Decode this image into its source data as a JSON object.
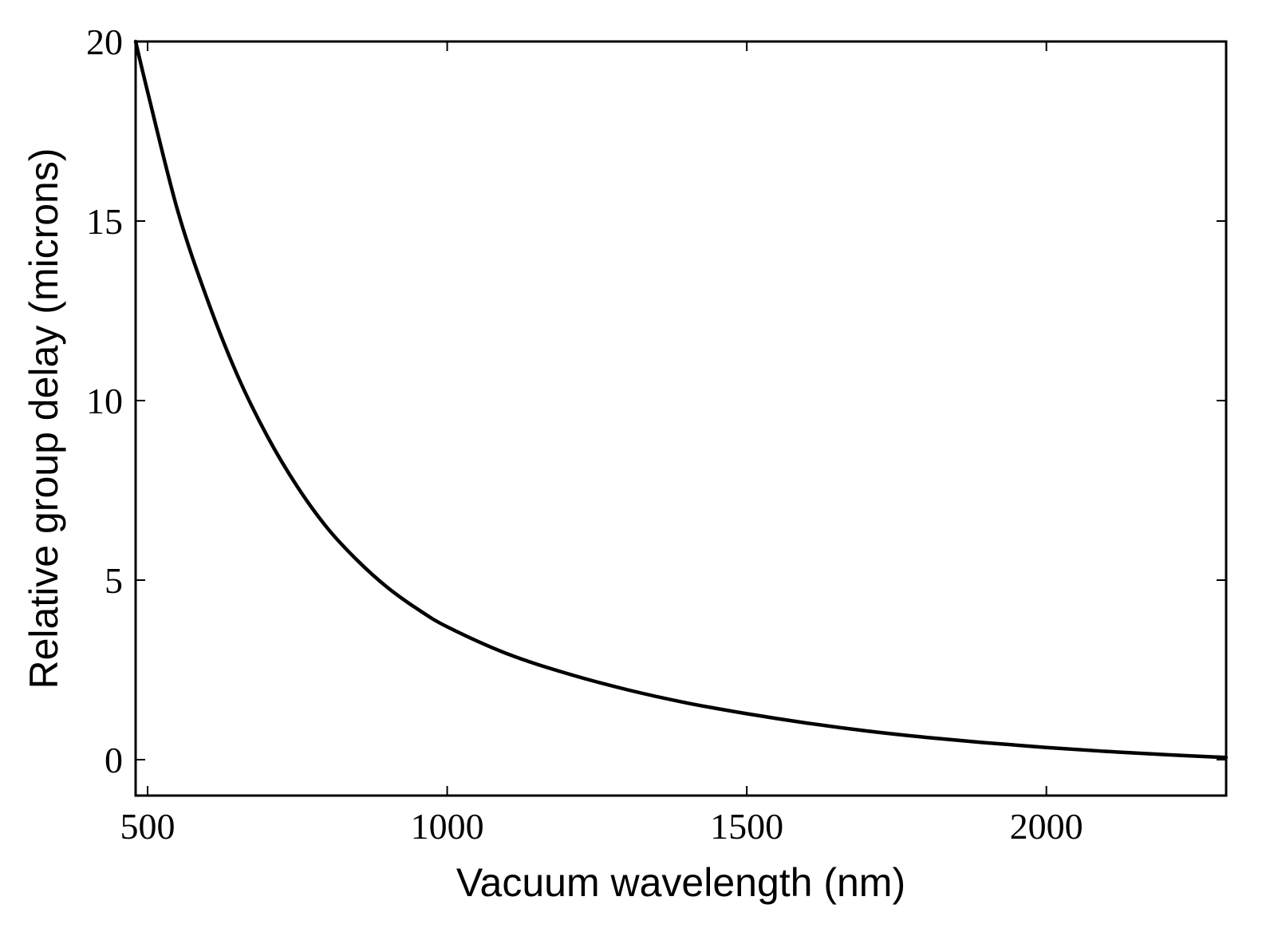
{
  "chart_data": {
    "type": "line",
    "title": "",
    "xlabel": "Vacuum wavelength (nm)",
    "ylabel": "Relative group delay (microns)",
    "xlim": [
      480,
      2300
    ],
    "ylim": [
      -1,
      20
    ],
    "xticks": [
      500,
      1000,
      1500,
      2000
    ],
    "yticks": [
      0,
      5,
      10,
      15,
      20
    ],
    "xtick_labels": [
      "500",
      "1000",
      "1500",
      "2000"
    ],
    "ytick_labels": [
      "0",
      "5",
      "10",
      "15",
      "20"
    ],
    "grid": false,
    "legend": "none",
    "series": [
      {
        "color": "#000000",
        "x": [
          480,
          500,
          550,
          600,
          650,
          700,
          750,
          800,
          850,
          900,
          950,
          1000,
          1100,
          1200,
          1300,
          1400,
          1500,
          1600,
          1700,
          1800,
          1900,
          2000,
          2100,
          2200,
          2300
        ],
        "y": [
          20.0,
          18.6,
          15.3,
          12.8,
          10.7,
          9.0,
          7.6,
          6.45,
          5.55,
          4.8,
          4.2,
          3.7,
          2.95,
          2.4,
          1.95,
          1.58,
          1.28,
          1.02,
          0.8,
          0.62,
          0.47,
          0.34,
          0.23,
          0.14,
          0.06
        ]
      }
    ]
  }
}
